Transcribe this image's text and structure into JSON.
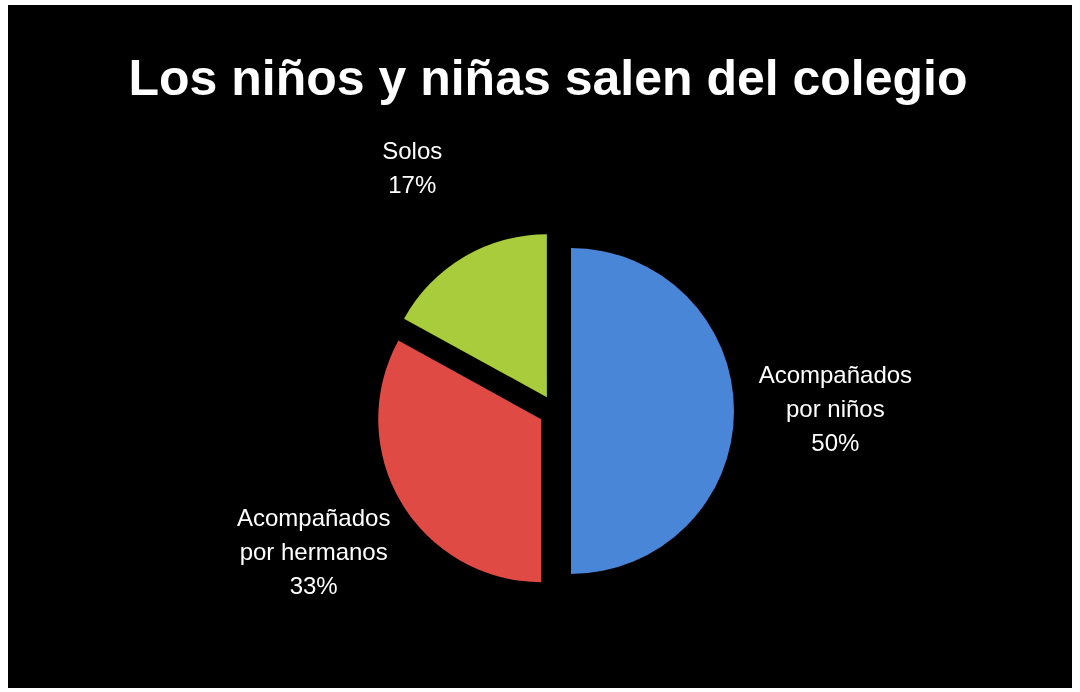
{
  "chart_data": {
    "type": "pie",
    "title": "Los niños y niñas salen del colegio",
    "categories": [
      "Acompañados por niños",
      "Acompañados por hermanos",
      "Solos"
    ],
    "values": [
      50,
      33,
      17
    ],
    "colors": [
      "#4a86d8",
      "#e04a44",
      "#a8cc3c"
    ],
    "value_labels": [
      "50%",
      "33%",
      "17%"
    ]
  }
}
